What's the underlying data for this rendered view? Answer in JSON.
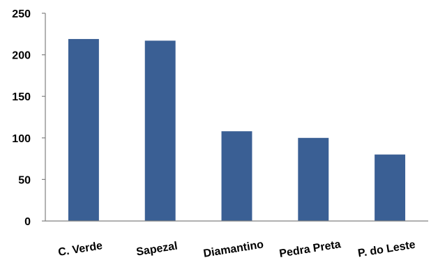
{
  "chart_data": {
    "type": "bar",
    "categories": [
      "C. Verde",
      "Sapezal",
      "Diamantino",
      "Pedra Preta",
      "P. do Leste"
    ],
    "values": [
      219,
      217,
      108,
      100,
      80
    ],
    "ylim": [
      0,
      250
    ],
    "yticks": [
      0,
      50,
      100,
      150,
      200,
      250
    ],
    "grid": false,
    "legend": "none",
    "bar_color": "#3A5F94",
    "xlabel": "",
    "ylabel": ""
  }
}
